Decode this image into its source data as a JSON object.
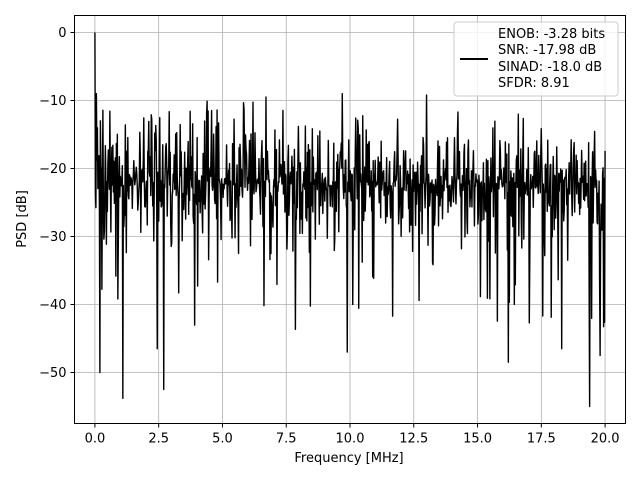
{
  "chart_data": {
    "type": "line",
    "title": "",
    "xlabel": "Frequency [MHz]",
    "ylabel": "PSD [dB]",
    "xlim": [
      -0.8,
      20.8
    ],
    "ylim": [
      -57.5,
      2.5
    ],
    "xticks": [
      0.0,
      2.5,
      5.0,
      7.5,
      10.0,
      12.5,
      15.0,
      17.5,
      20.0
    ],
    "xtick_labels": [
      "0.0",
      "2.5",
      "5.0",
      "7.5",
      "10.0",
      "12.5",
      "15.0",
      "17.5",
      "20.0"
    ],
    "yticks": [
      0,
      -10,
      -20,
      -30,
      -40,
      -50
    ],
    "ytick_labels": [
      "0",
      "−10",
      "−20",
      "−30",
      "−40",
      "−50"
    ],
    "grid": true,
    "legend_position": "top-right",
    "legend_lines": [
      "ENOB: -3.28 bits",
      "SNR: -17.98 dB",
      "SINAD: -18.0 dB",
      "SFDR: 8.91"
    ],
    "series": [
      {
        "color": "#000000",
        "noise_floor_db": -22,
        "noise_spread_db": [
          -30,
          -14
        ],
        "peak_db": 0,
        "peak_at_mhz": 0.0,
        "x_range_mhz": [
          0.0,
          20.0
        ],
        "notable_points": [
          {
            "x": 0.0,
            "y": 0.0
          },
          {
            "x": 0.05,
            "y": -9.0
          },
          {
            "x": 0.2,
            "y": -50.0
          },
          {
            "x": 1.1,
            "y": -53.8
          },
          {
            "x": 2.7,
            "y": -52.5
          },
          {
            "x": 2.45,
            "y": -46.5
          },
          {
            "x": 9.9,
            "y": -47.0
          },
          {
            "x": 16.2,
            "y": -48.5
          },
          {
            "x": 18.3,
            "y": -46.5
          },
          {
            "x": 19.4,
            "y": -55.0
          },
          {
            "x": 19.8,
            "y": -47.5
          },
          {
            "x": 6.7,
            "y": -9.5
          },
          {
            "x": 9.7,
            "y": -9.0
          },
          {
            "x": 13.0,
            "y": -9.2
          }
        ]
      }
    ]
  }
}
